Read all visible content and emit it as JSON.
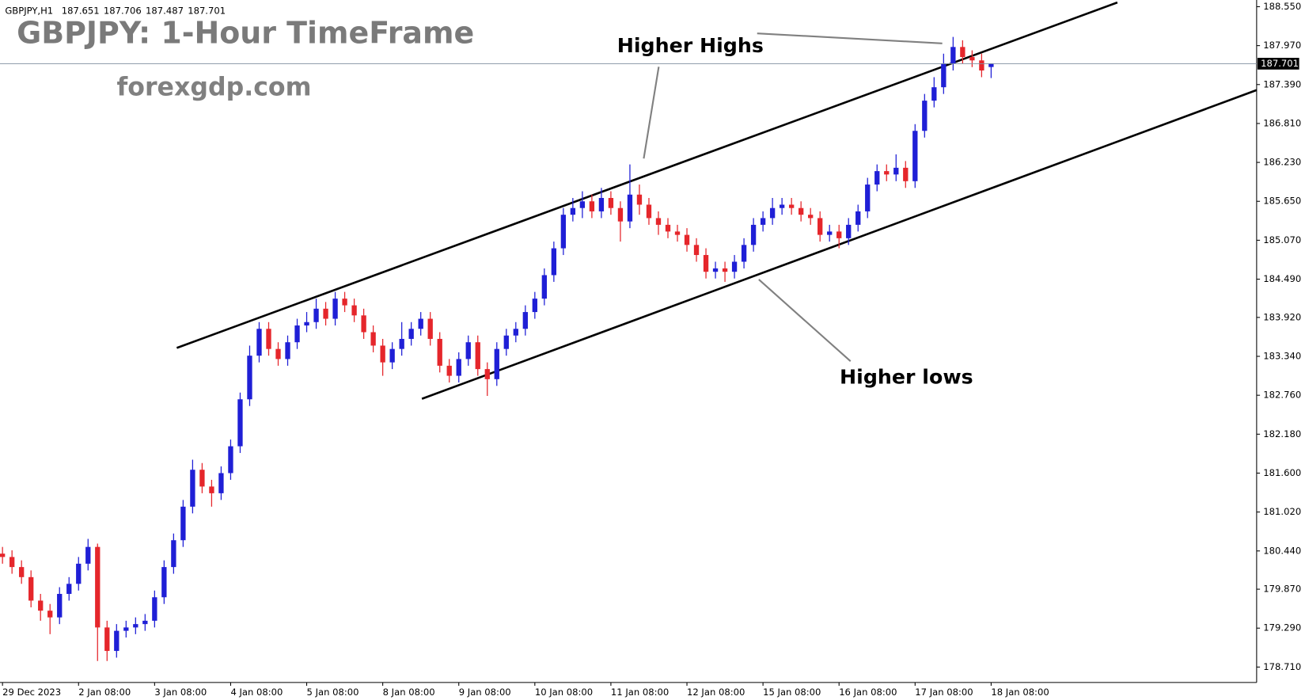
{
  "chart_data": {
    "type": "candlestick",
    "symbol": "GBPJPY,H1",
    "header_ohlc": [
      187.651,
      187.706,
      187.487,
      187.701
    ],
    "title": "GBPJPY: 1-Hour TimeFrame",
    "watermark": "forexgdp.com",
    "annotations": [
      "Higher Highs",
      "Higher lows"
    ],
    "categories": [
      "29 Dec 2023",
      null,
      null,
      null,
      null,
      null,
      null,
      null,
      "2 Jan 08:00",
      null,
      null,
      null,
      null,
      null,
      null,
      null,
      "3 Jan 08:00",
      null,
      null,
      null,
      null,
      null,
      null,
      null,
      "4 Jan 08:00",
      null,
      null,
      null,
      null,
      null,
      null,
      null,
      "5 Jan 08:00",
      null,
      null,
      null,
      null,
      null,
      null,
      null,
      "8 Jan 08:00",
      null,
      null,
      null,
      null,
      null,
      null,
      null,
      "9 Jan 08:00",
      null,
      null,
      null,
      null,
      null,
      null,
      null,
      "10 Jan 08:00",
      null,
      null,
      null,
      null,
      null,
      null,
      null,
      "11 Jan 08:00",
      null,
      null,
      null,
      null,
      null,
      null,
      null,
      "12 Jan 08:00",
      null,
      null,
      null,
      null,
      null,
      null,
      null,
      "15 Jan 08:00",
      null,
      null,
      null,
      null,
      null,
      null,
      null,
      "16 Jan 08:00",
      null,
      null,
      null,
      null,
      null,
      null,
      null,
      "17 Jan 08:00",
      null,
      null,
      null,
      null,
      null,
      null,
      null,
      "18 Jan 08:00"
    ],
    "open": [
      180.4,
      180.35,
      180.2,
      180.05,
      179.7,
      179.55,
      179.45,
      179.8,
      179.95,
      180.25,
      180.5,
      179.3,
      178.95,
      179.25,
      179.3,
      179.35,
      179.4,
      179.75,
      180.2,
      180.6,
      181.1,
      181.65,
      181.4,
      181.3,
      181.6,
      182.0,
      182.7,
      183.35,
      183.75,
      183.45,
      183.3,
      183.55,
      183.8,
      183.85,
      184.05,
      183.9,
      184.2,
      184.1,
      183.95,
      183.7,
      183.5,
      183.25,
      183.45,
      183.6,
      183.75,
      183.9,
      183.6,
      183.2,
      183.05,
      183.3,
      183.55,
      183.15,
      183.0,
      183.45,
      183.65,
      183.75,
      184.0,
      184.2,
      184.55,
      184.95,
      185.45,
      185.55,
      185.65,
      185.5,
      185.7,
      185.55,
      185.35,
      185.75,
      185.6,
      185.4,
      185.3,
      185.2,
      185.15,
      185.0,
      184.85,
      184.6,
      184.65,
      184.6,
      184.75,
      185.0,
      185.3,
      185.4,
      185.55,
      185.6,
      185.55,
      185.45,
      185.4,
      185.15,
      185.2,
      185.1,
      185.3,
      185.5,
      185.9,
      186.1,
      186.05,
      186.15,
      185.95,
      186.7,
      187.15,
      187.35,
      187.7,
      187.95,
      187.8,
      187.75,
      187.651
    ],
    "high": [
      180.5,
      180.45,
      180.3,
      180.15,
      179.8,
      179.65,
      179.9,
      180.05,
      180.35,
      180.62,
      180.55,
      179.4,
      179.35,
      179.4,
      179.45,
      179.5,
      179.85,
      180.3,
      180.7,
      181.2,
      181.8,
      181.75,
      181.5,
      181.7,
      182.1,
      182.8,
      183.5,
      183.85,
      183.85,
      183.55,
      183.65,
      183.9,
      184.0,
      184.2,
      184.15,
      184.3,
      184.3,
      184.2,
      184.05,
      183.8,
      183.6,
      183.55,
      183.85,
      183.85,
      184.0,
      184.0,
      183.7,
      183.3,
      183.4,
      183.65,
      183.65,
      183.25,
      183.55,
      183.75,
      183.85,
      184.1,
      184.3,
      184.65,
      185.05,
      185.55,
      185.7,
      185.8,
      185.75,
      185.85,
      185.8,
      185.65,
      186.2,
      185.9,
      185.7,
      185.5,
      185.4,
      185.3,
      185.25,
      185.1,
      184.95,
      184.75,
      184.75,
      184.85,
      185.1,
      185.4,
      185.5,
      185.7,
      185.7,
      185.7,
      185.65,
      185.55,
      185.5,
      185.3,
      185.3,
      185.4,
      185.6,
      186.0,
      186.2,
      186.2,
      186.35,
      186.25,
      186.8,
      187.25,
      187.5,
      187.85,
      188.1,
      188.05,
      187.9,
      187.85,
      187.706
    ],
    "low": [
      180.25,
      180.1,
      179.95,
      179.6,
      179.4,
      179.2,
      179.35,
      179.7,
      179.85,
      180.15,
      178.8,
      178.8,
      178.85,
      179.15,
      179.2,
      179.25,
      179.3,
      179.65,
      180.1,
      180.5,
      181.0,
      181.3,
      181.1,
      181.2,
      181.5,
      181.9,
      182.6,
      183.25,
      183.35,
      183.2,
      183.2,
      183.45,
      183.7,
      183.75,
      183.8,
      183.8,
      184.0,
      183.85,
      183.6,
      183.4,
      183.05,
      183.15,
      183.35,
      183.5,
      183.65,
      183.5,
      183.1,
      182.95,
      182.95,
      183.2,
      183.05,
      182.75,
      182.9,
      183.35,
      183.55,
      183.65,
      183.9,
      184.1,
      184.45,
      184.85,
      185.35,
      185.4,
      185.4,
      185.4,
      185.45,
      185.05,
      185.25,
      185.45,
      185.3,
      185.15,
      185.1,
      185.05,
      184.9,
      184.75,
      184.5,
      184.5,
      184.45,
      184.5,
      184.65,
      184.9,
      185.2,
      185.3,
      185.45,
      185.45,
      185.35,
      185.3,
      185.05,
      185.05,
      184.95,
      185.0,
      185.2,
      185.4,
      185.8,
      185.95,
      185.95,
      185.85,
      185.85,
      186.6,
      187.05,
      187.25,
      187.6,
      187.7,
      187.65,
      187.5,
      187.487
    ],
    "close": [
      180.35,
      180.2,
      180.05,
      179.7,
      179.55,
      179.45,
      179.8,
      179.95,
      180.25,
      180.5,
      179.3,
      178.95,
      179.25,
      179.3,
      179.35,
      179.4,
      179.75,
      180.2,
      180.6,
      181.1,
      181.65,
      181.4,
      181.3,
      181.6,
      182.0,
      182.7,
      183.35,
      183.75,
      183.45,
      183.3,
      183.55,
      183.8,
      183.85,
      184.05,
      183.9,
      184.2,
      184.1,
      183.95,
      183.7,
      183.5,
      183.25,
      183.45,
      183.6,
      183.75,
      183.9,
      183.6,
      183.2,
      183.05,
      183.3,
      183.55,
      183.15,
      183.0,
      183.45,
      183.65,
      183.75,
      184.0,
      184.2,
      184.55,
      184.95,
      185.45,
      185.55,
      185.65,
      185.5,
      185.7,
      185.55,
      185.35,
      185.75,
      185.6,
      185.4,
      185.3,
      185.2,
      185.15,
      185.0,
      184.85,
      184.6,
      184.65,
      184.6,
      184.75,
      185.0,
      185.3,
      185.4,
      185.55,
      185.6,
      185.55,
      185.45,
      185.4,
      185.15,
      185.2,
      185.1,
      185.3,
      185.5,
      185.9,
      186.1,
      186.05,
      186.15,
      185.95,
      186.7,
      187.15,
      187.35,
      187.7,
      187.95,
      187.8,
      187.75,
      187.6,
      187.701
    ],
    "up_color": "#1f1fd6",
    "down_color": "#e5262b",
    "current_price": 187.701,
    "ylim": [
      178.48,
      188.65
    ],
    "yticks": [
      {
        "value": 188.55,
        "label": "188.550"
      },
      {
        "value": 187.97,
        "label": "187.970"
      },
      {
        "value": 187.39,
        "label": "187.390"
      },
      {
        "value": 186.81,
        "label": "186.810"
      },
      {
        "value": 186.23,
        "label": "186.230"
      },
      {
        "value": 185.65,
        "label": "185.650"
      },
      {
        "value": 185.07,
        "label": "185.070"
      },
      {
        "value": 184.49,
        "label": "184.490"
      },
      {
        "value": 183.92,
        "label": "183.920"
      },
      {
        "value": 183.34,
        "label": "183.340"
      },
      {
        "value": 182.76,
        "label": "182.760"
      },
      {
        "value": 182.18,
        "label": "182.180"
      },
      {
        "value": 181.6,
        "label": "181.600"
      },
      {
        "value": 181.02,
        "label": "181.020"
      },
      {
        "value": 180.44,
        "label": "180.440"
      },
      {
        "value": 179.87,
        "label": "179.870"
      },
      {
        "value": 179.29,
        "label": "179.290"
      },
      {
        "value": 178.71,
        "label": "178.710"
      }
    ]
  }
}
